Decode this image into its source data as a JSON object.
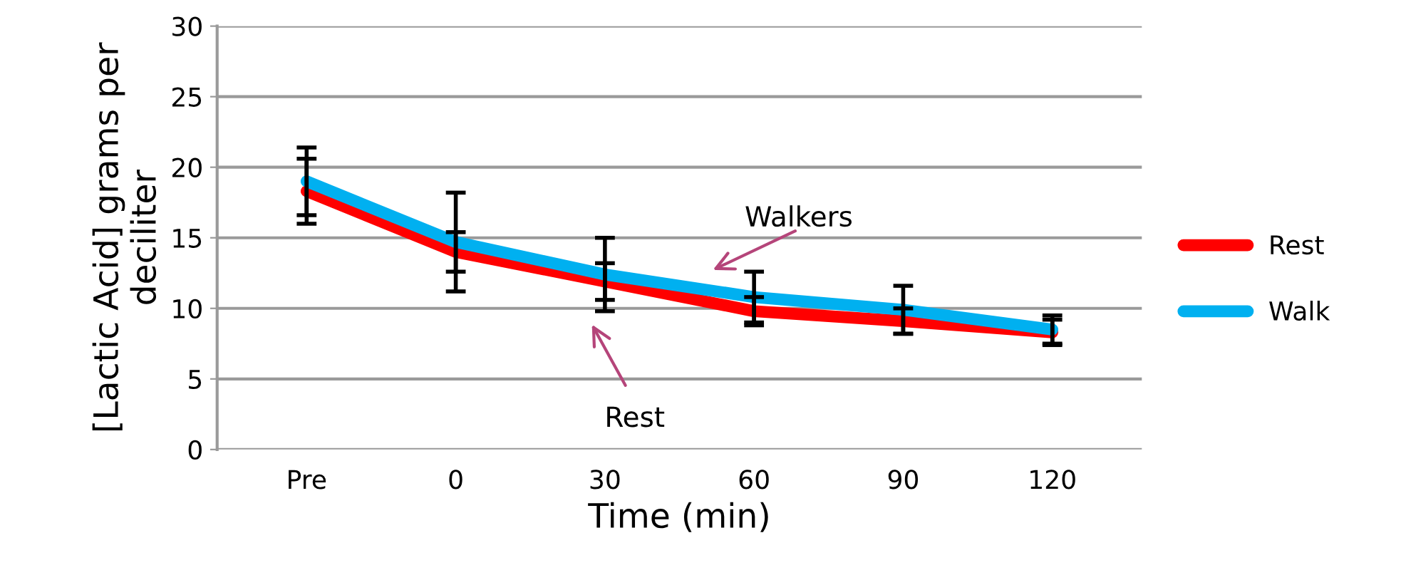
{
  "chart_data": {
    "type": "line",
    "xlabel": "Time (min)",
    "ylabel": "[Lactic Acid] grams per\ndeciliter",
    "categories": [
      "Pre",
      "0",
      "30",
      "60",
      "90",
      "120"
    ],
    "series": [
      {
        "name": "Rest",
        "color": "#ff0000",
        "values": [
          18.3,
          14.0,
          11.9,
          9.8,
          9.1,
          8.3
        ],
        "errors": [
          2.3,
          1.4,
          1.3,
          1.0,
          0.9,
          0.9
        ]
      },
      {
        "name": "Walk",
        "color": "#00b0f0",
        "values": [
          19.0,
          14.7,
          12.4,
          10.8,
          9.9,
          8.5
        ],
        "errors": [
          2.4,
          3.5,
          2.6,
          1.8,
          1.7,
          1.0
        ]
      }
    ],
    "ylim": [
      0,
      30
    ],
    "yticks": [
      0,
      5,
      10,
      15,
      20,
      25,
      30
    ],
    "grid": "y",
    "legend": "right",
    "marker": "none",
    "line_style": "solid",
    "annotations": [
      "Walkers",
      "Rest"
    ]
  }
}
